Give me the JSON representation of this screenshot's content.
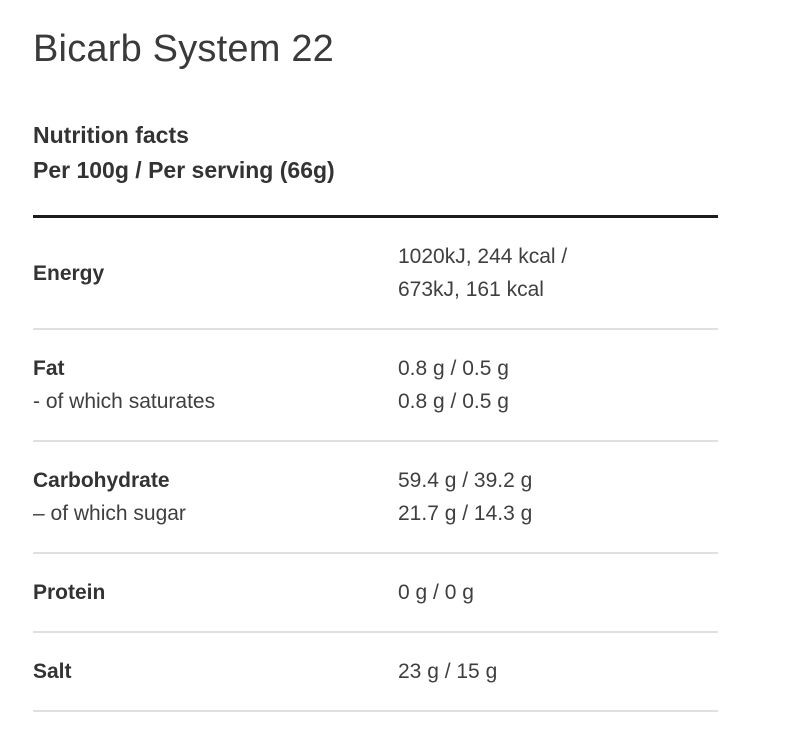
{
  "page": {
    "title": "Bicarb System 22"
  },
  "nutrition_header": {
    "heading": "Nutrition facts",
    "serving_info": "Per 100g / Per serving (66g)"
  },
  "table": {
    "rows": [
      {
        "name": "Energy",
        "value": "1020kJ, 244 kcal /",
        "value2": "673kJ, 161 kcal"
      },
      {
        "name": "Fat",
        "sub": "- of which saturates",
        "value": "0.8 g / 0.5 g",
        "value2": "0.8 g / 0.5 g"
      },
      {
        "name": "Carbohydrate",
        "sub": "– of which sugar",
        "value": "59.4 g / 39.2 g",
        "value2": "21.7 g / 14.3 g"
      },
      {
        "name": "Protein",
        "value": "0 g / 0 g"
      },
      {
        "name": "Salt",
        "value": "23 g / 15 g"
      }
    ]
  },
  "colors": {
    "text": "#3f3f3f",
    "bold_text": "#333333",
    "top_rule": "#1c1c1c",
    "row_divider": "#e0e0e0",
    "background": "#ffffff"
  }
}
